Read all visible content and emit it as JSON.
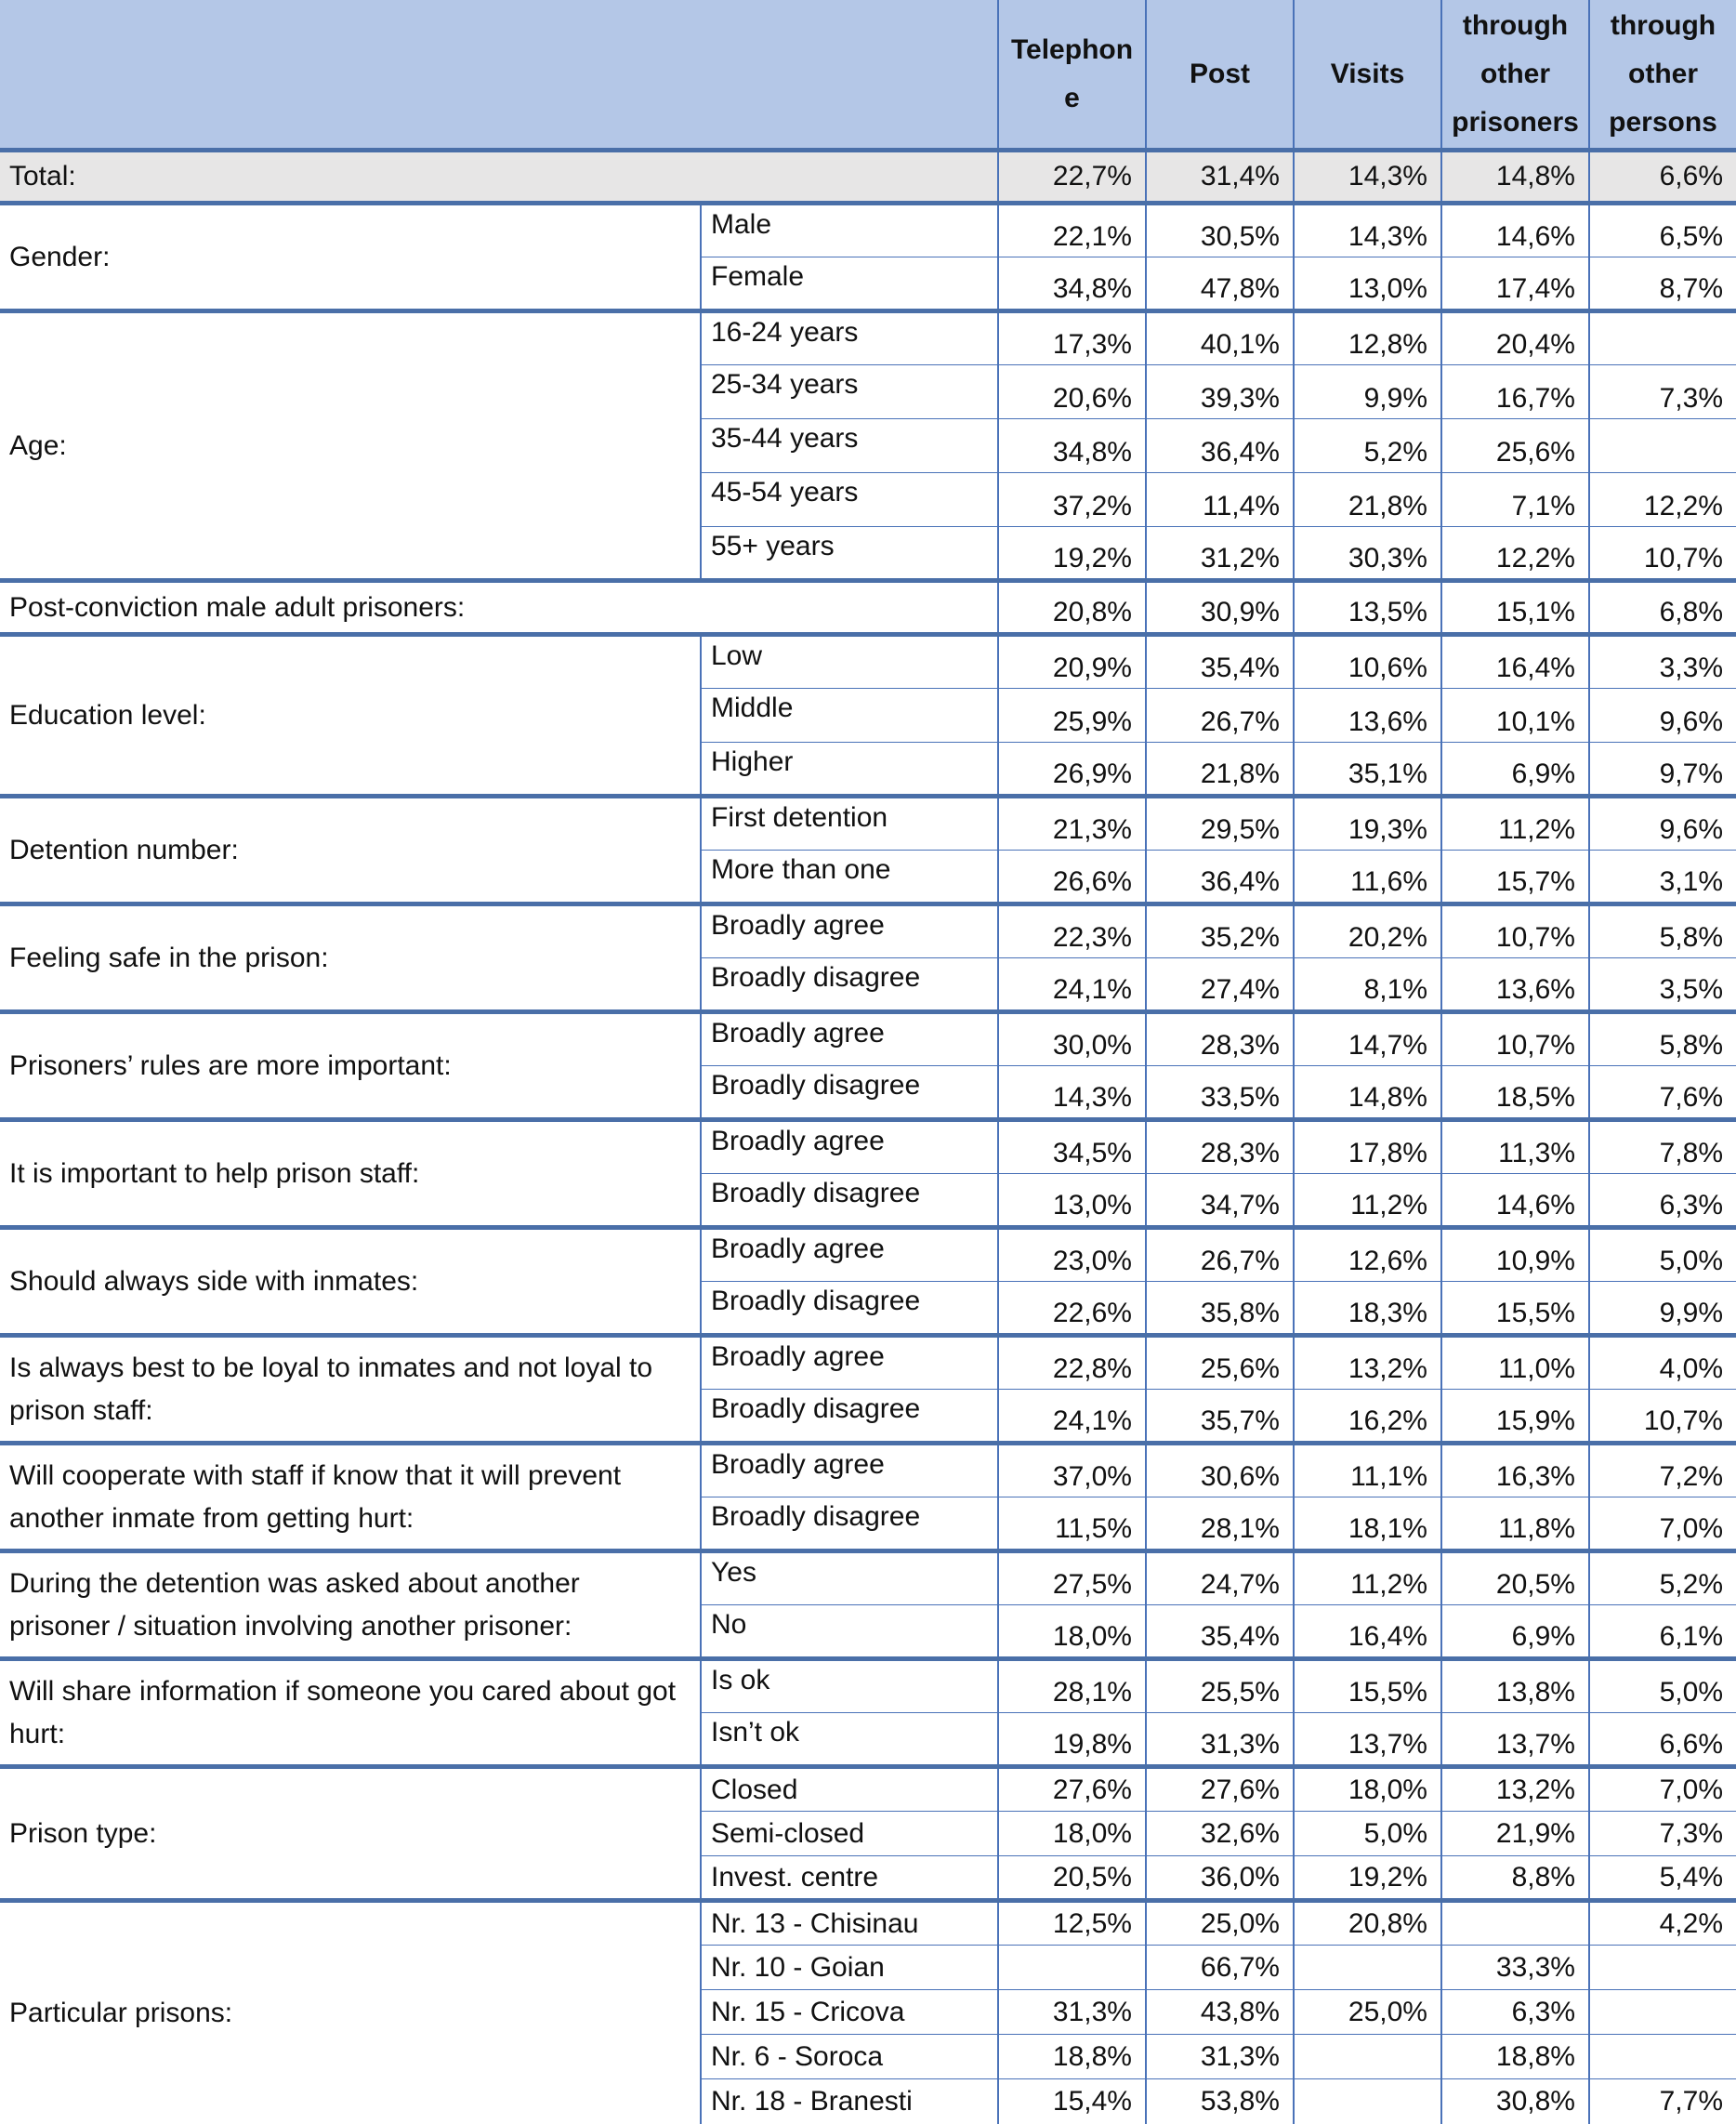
{
  "columns": [
    "Telephone",
    "Post",
    "Visits",
    "through other prisoners",
    "through other persons"
  ],
  "columns_display": [
    "Telephon e",
    "Post",
    "Visits",
    "through other prisoners",
    "through other persons"
  ],
  "total": {
    "label": "Total:",
    "values": [
      "22,7%",
      "31,4%",
      "14,3%",
      "14,8%",
      "6,6%"
    ]
  },
  "groups": [
    {
      "label": "Gender:",
      "rows": [
        {
          "sub": "Male",
          "values": [
            "22,1%",
            "30,5%",
            "14,3%",
            "14,6%",
            "6,5%"
          ]
        },
        {
          "sub": "Female",
          "values": [
            "34,8%",
            "47,8%",
            "13,0%",
            "17,4%",
            "8,7%"
          ]
        }
      ]
    },
    {
      "label": "Age:",
      "rows": [
        {
          "sub": "16-24 years",
          "values": [
            "17,3%",
            "40,1%",
            "12,8%",
            "20,4%",
            ""
          ]
        },
        {
          "sub": "25-34 years",
          "values": [
            "20,6%",
            "39,3%",
            "9,9%",
            "16,7%",
            "7,3%"
          ]
        },
        {
          "sub": "35-44 years",
          "values": [
            "34,8%",
            "36,4%",
            "5,2%",
            "25,6%",
            ""
          ]
        },
        {
          "sub": "45-54 years",
          "values": [
            "37,2%",
            "11,4%",
            "21,8%",
            "7,1%",
            "12,2%"
          ]
        },
        {
          "sub": "55+ years",
          "values": [
            "19,2%",
            "31,2%",
            "30,3%",
            "12,2%",
            "10,7%"
          ]
        }
      ]
    },
    {
      "label": "Post-conviction male adult prisoners:",
      "span": true,
      "rows": [
        {
          "sub": "",
          "values": [
            "20,8%",
            "30,9%",
            "13,5%",
            "15,1%",
            "6,8%"
          ]
        }
      ]
    },
    {
      "label": "Education level:",
      "rows": [
        {
          "sub": "Low",
          "values": [
            "20,9%",
            "35,4%",
            "10,6%",
            "16,4%",
            "3,3%"
          ]
        },
        {
          "sub": "Middle",
          "values": [
            "25,9%",
            "26,7%",
            "13,6%",
            "10,1%",
            "9,6%"
          ]
        },
        {
          "sub": "Higher",
          "values": [
            "26,9%",
            "21,8%",
            "35,1%",
            "6,9%",
            "9,7%"
          ]
        }
      ]
    },
    {
      "label": "Detention number:",
      "rows": [
        {
          "sub": "First detention",
          "values": [
            "21,3%",
            "29,5%",
            "19,3%",
            "11,2%",
            "9,6%"
          ]
        },
        {
          "sub": "More than one",
          "values": [
            "26,6%",
            "36,4%",
            "11,6%",
            "15,7%",
            "3,1%"
          ]
        }
      ]
    },
    {
      "label": "Feeling safe in the prison:",
      "rows": [
        {
          "sub": "Broadly agree",
          "values": [
            "22,3%",
            "35,2%",
            "20,2%",
            "10,7%",
            "5,8%"
          ]
        },
        {
          "sub": "Broadly disagree",
          "values": [
            "24,1%",
            "27,4%",
            "8,1%",
            "13,6%",
            "3,5%"
          ]
        }
      ]
    },
    {
      "label": "Prisoners’ rules are more important:",
      "rows": [
        {
          "sub": "Broadly agree",
          "values": [
            "30,0%",
            "28,3%",
            "14,7%",
            "10,7%",
            "5,8%"
          ]
        },
        {
          "sub": "Broadly disagree",
          "values": [
            "14,3%",
            "33,5%",
            "14,8%",
            "18,5%",
            "7,6%"
          ]
        }
      ]
    },
    {
      "label": "It is important to help prison staff:",
      "rows": [
        {
          "sub": "Broadly agree",
          "values": [
            "34,5%",
            "28,3%",
            "17,8%",
            "11,3%",
            "7,8%"
          ]
        },
        {
          "sub": "Broadly disagree",
          "values": [
            "13,0%",
            "34,7%",
            "11,2%",
            "14,6%",
            "6,3%"
          ]
        }
      ]
    },
    {
      "label": "Should always side with inmates:",
      "rows": [
        {
          "sub": "Broadly agree",
          "values": [
            "23,0%",
            "26,7%",
            "12,6%",
            "10,9%",
            "5,0%"
          ]
        },
        {
          "sub": "Broadly disagree",
          "values": [
            "22,6%",
            "35,8%",
            "18,3%",
            "15,5%",
            "9,9%"
          ]
        }
      ]
    },
    {
      "label": "Is always best to be loyal to inmates and not loyal to prison staff:",
      "rows": [
        {
          "sub": "Broadly agree",
          "values": [
            "22,8%",
            "25,6%",
            "13,2%",
            "11,0%",
            "4,0%"
          ]
        },
        {
          "sub": "Broadly disagree",
          "values": [
            "24,1%",
            "35,7%",
            "16,2%",
            "15,9%",
            "10,7%"
          ]
        }
      ]
    },
    {
      "label": "Will cooperate with staff if know that it will prevent another inmate from getting hurt:",
      "rows": [
        {
          "sub": "Broadly agree",
          "values": [
            "37,0%",
            "30,6%",
            "11,1%",
            "16,3%",
            "7,2%"
          ]
        },
        {
          "sub": "Broadly disagree",
          "values": [
            "11,5%",
            "28,1%",
            "18,1%",
            "11,8%",
            "7,0%"
          ]
        }
      ]
    },
    {
      "label": "During the detention was asked about another prisoner / situation involving another prisoner:",
      "rows": [
        {
          "sub": "Yes",
          "values": [
            "27,5%",
            "24,7%",
            "11,2%",
            "20,5%",
            "5,2%"
          ]
        },
        {
          "sub": "No",
          "values": [
            "18,0%",
            "35,4%",
            "16,4%",
            "6,9%",
            "6,1%"
          ]
        }
      ]
    },
    {
      "label": "Will share information if someone you cared about got hurt:",
      "rows": [
        {
          "sub": "Is ok",
          "values": [
            "28,1%",
            "25,5%",
            "15,5%",
            "13,8%",
            "5,0%"
          ]
        },
        {
          "sub": "Isn’t ok",
          "values": [
            "19,8%",
            "31,3%",
            "13,7%",
            "13,7%",
            "6,6%"
          ]
        }
      ]
    },
    {
      "label": "Prison type:",
      "short": true,
      "rows": [
        {
          "sub": "Closed",
          "values": [
            "27,6%",
            "27,6%",
            "18,0%",
            "13,2%",
            "7,0%"
          ]
        },
        {
          "sub": "Semi-closed",
          "values": [
            "18,0%",
            "32,6%",
            "5,0%",
            "21,9%",
            "7,3%"
          ]
        },
        {
          "sub": "Invest. centre",
          "values": [
            "20,5%",
            "36,0%",
            "19,2%",
            "8,8%",
            "5,4%"
          ]
        }
      ]
    },
    {
      "label": "Particular prisons:",
      "short": true,
      "rows": [
        {
          "sub": "Nr. 13 - Chisinau",
          "values": [
            "12,5%",
            "25,0%",
            "20,8%",
            "",
            "4,2%"
          ]
        },
        {
          "sub": "Nr. 10 - Goian",
          "values": [
            "",
            "66,7%",
            "",
            "33,3%",
            ""
          ]
        },
        {
          "sub": "Nr. 15 - Cricova",
          "values": [
            "31,3%",
            "43,8%",
            "25,0%",
            "6,3%",
            ""
          ]
        },
        {
          "sub": "Nr. 6 - Soroca",
          "values": [
            "18,8%",
            "31,3%",
            "",
            "18,8%",
            ""
          ]
        },
        {
          "sub": "Nr. 18 - Branesti",
          "values": [
            "15,4%",
            "53,8%",
            "",
            "30,8%",
            "7,7%"
          ]
        }
      ]
    }
  ]
}
